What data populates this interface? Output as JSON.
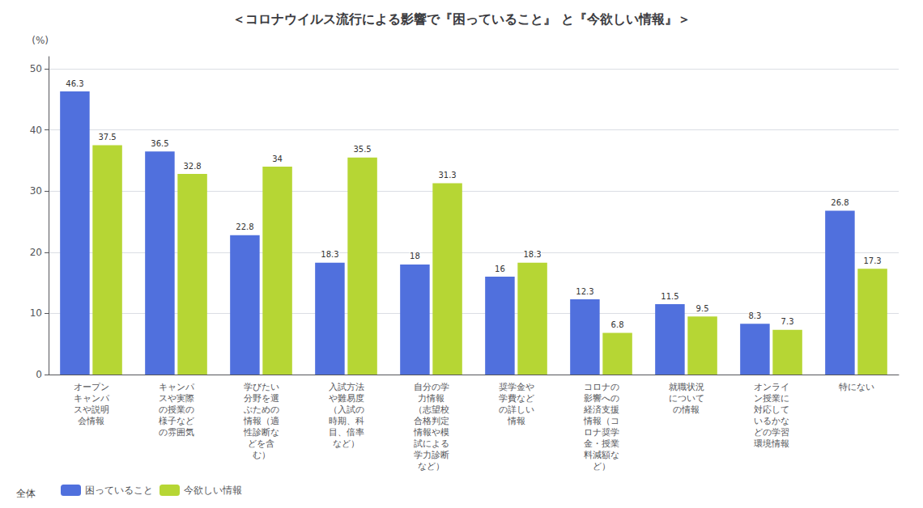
{
  "chart_data": {
    "type": "bar",
    "title": "＜コロナウイルス流行による影響で『困っていること』 と『今欲しい情報』＞",
    "y_label": "(%)",
    "categories": [
      "オープン\nキャンパ\nスや説明\n会情報",
      "キャンパ\nスや実際\nの授業の\n様子など\nの雰囲気",
      "学びたい\n分野を選\nぶための\n情報（適\n性診断な\nどを含\nむ）",
      "入試方法\nや難易度\n（入試の\n時期、科\n目、倍率\nなど）",
      "自分の学\n力情報\n（志望校\n合格判定\n情報や模\n試による\n学力診断\nなど）",
      "奨学金や\n学費など\nの詳しい\n情報",
      "コロナの\n影響への\n経済支援\n情報（コ\nロナ奨学\n金・授業\n料減額な\nど）",
      "就職状況\nについて\nの情報",
      "オンライ\nン授業に\n対応して\nいるかな\nどの学習\n環境情報",
      "特にない"
    ],
    "series": [
      {
        "name": "困っていること",
        "values": [
          46.3,
          36.5,
          22.8,
          18.3,
          18,
          16,
          12.3,
          11.5,
          8.3,
          26.8
        ]
      },
      {
        "name": "今欲しい情報",
        "values": [
          37.5,
          32.8,
          34,
          35.5,
          31.3,
          18.3,
          6.8,
          9.5,
          7.3,
          17.3
        ]
      }
    ],
    "annotations": [
      "全体"
    ],
    "ylim": [
      0,
      52
    ],
    "yticks": [
      0,
      10,
      20,
      30,
      40,
      50
    ],
    "grid": true,
    "legend": "bottom-left",
    "data_labels": true
  }
}
